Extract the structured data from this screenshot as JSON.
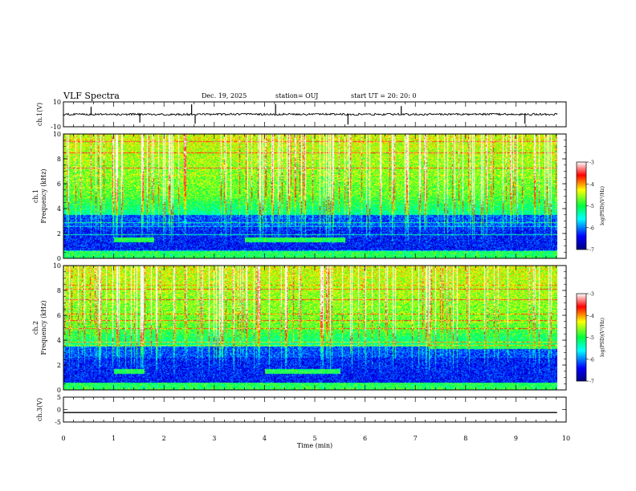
{
  "header": {
    "title": "VLF Spectra",
    "date": "Dec. 19, 2025",
    "station": "station= OUJ",
    "start": "start  UT  =   20: 20: 0"
  },
  "chart_data": [
    {
      "type": "line",
      "name": "ch1-waveform",
      "ylabel": "ch.1(V)",
      "ylim": [
        -10,
        10
      ],
      "yticks": [
        10,
        -10
      ],
      "baseline": 0,
      "spikes_min": [
        0.55,
        1.52,
        2.55,
        2.62,
        4.22,
        5.66,
        6.72,
        9.18
      ]
    },
    {
      "type": "heatmap",
      "name": "ch1-spectrogram",
      "ylabel_line1": "ch.1",
      "ylabel_line2": "Frequency (kHz)",
      "ylim": [
        0,
        10
      ],
      "yticks": [
        0,
        2,
        4,
        6,
        8,
        10
      ]
    },
    {
      "type": "heatmap",
      "name": "ch2-spectrogram",
      "ylabel_line1": "ch.2",
      "ylabel_line2": "Frequency (kHz)",
      "ylim": [
        0,
        10
      ],
      "yticks": [
        0,
        2,
        4,
        6,
        8,
        10
      ]
    },
    {
      "type": "line",
      "name": "ch3-waveform",
      "ylabel": "ch.3(V)",
      "ylim": [
        -5,
        5
      ],
      "yticks": [
        5,
        0,
        -5
      ],
      "value": -1.2
    }
  ],
  "xaxis": {
    "label": "Time  (min)",
    "range": [
      0,
      10
    ],
    "data_end": 9.82,
    "ticks": [
      0,
      1,
      2,
      3,
      4,
      5,
      6,
      7,
      8,
      9,
      10
    ]
  },
  "colorbar": {
    "label": "log(PSD)(V²/Hz)",
    "range": [
      -7,
      -3
    ],
    "ticks": [
      -3,
      -4,
      -5,
      -6,
      -7
    ]
  },
  "colors": {
    "background": "#ffffff",
    "ink": "#000000"
  }
}
